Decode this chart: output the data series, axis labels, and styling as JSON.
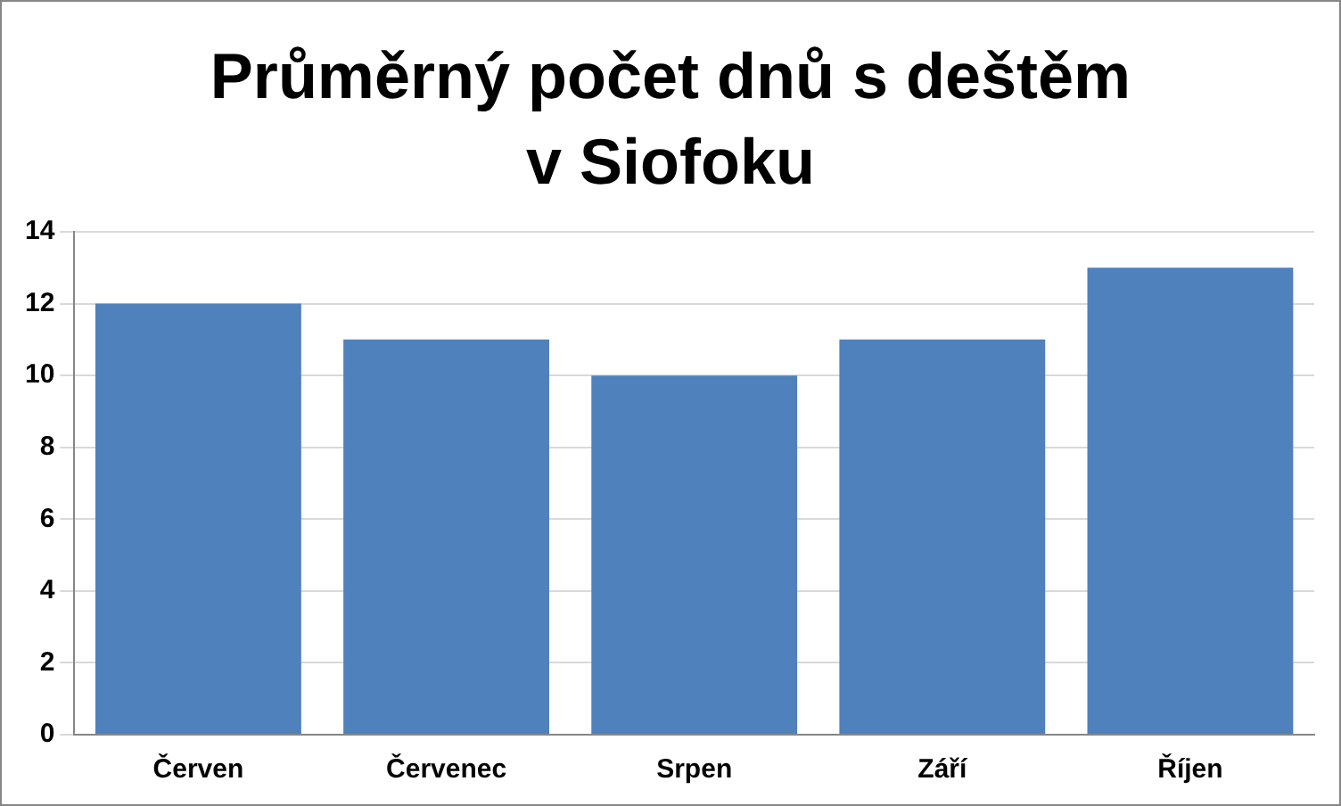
{
  "chart_data": {
    "type": "bar",
    "title": "Průměrný počet dnů s deštěm v Siofoku",
    "categories": [
      "Červen",
      "Červenec",
      "Srpen",
      "Září",
      "Říjen"
    ],
    "values": [
      12,
      11,
      10,
      11,
      13
    ],
    "color": "#4f81bd",
    "ylim": [
      0,
      14
    ],
    "yticks": [
      0,
      2,
      4,
      6,
      8,
      10,
      12,
      14
    ],
    "grid": "y",
    "legend": false
  }
}
